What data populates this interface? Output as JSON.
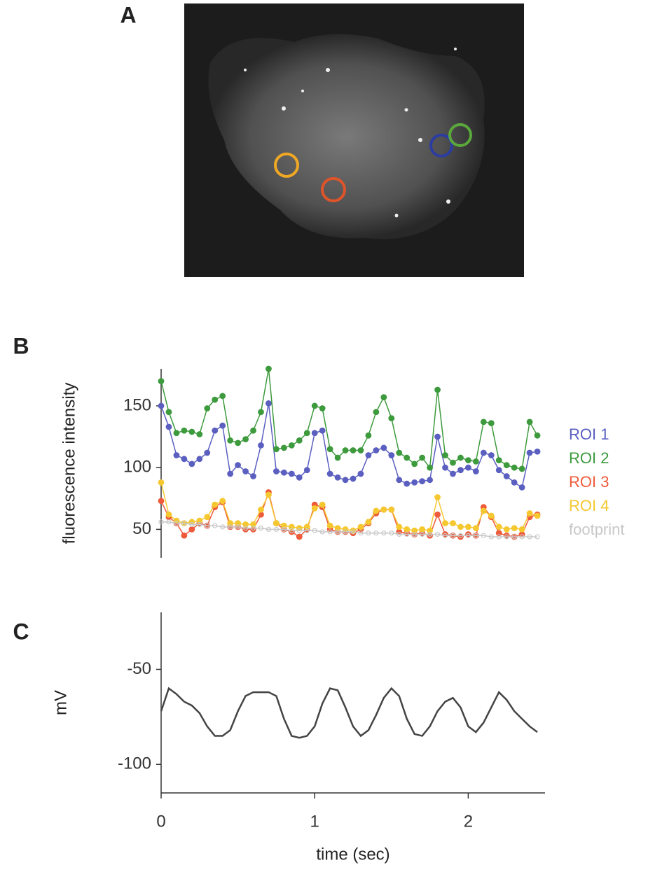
{
  "panel_labels": [
    "A",
    "B",
    "C"
  ],
  "chart_data": [
    {
      "type": "line",
      "ylabel": "fluorescence intensity",
      "legend": "right",
      "x": [
        0,
        0.05,
        0.1,
        0.15,
        0.2,
        0.25,
        0.3,
        0.35,
        0.4,
        0.45,
        0.5,
        0.55,
        0.6,
        0.65,
        0.7,
        0.75,
        0.8,
        0.85,
        0.9,
        0.95,
        1.0,
        1.05,
        1.1,
        1.15,
        1.2,
        1.25,
        1.3,
        1.35,
        1.4,
        1.45,
        1.5,
        1.55,
        1.6,
        1.65,
        1.7,
        1.75,
        1.8,
        1.85,
        1.9,
        1.95,
        2.0,
        2.05,
        2.1,
        2.15,
        2.2,
        2.25,
        2.3,
        2.35,
        2.4,
        2.45
      ],
      "xlim": [
        0,
        2.5
      ],
      "ylim": [
        27,
        180
      ],
      "yticks": [
        50,
        100,
        150
      ],
      "series": [
        {
          "name": "ROI 1",
          "color": "#5a5fc0",
          "values": [
            150,
            133,
            110,
            107,
            103,
            107,
            112,
            130,
            134,
            95,
            102,
            97,
            93,
            118,
            152,
            97,
            96,
            95,
            92,
            98,
            128,
            130,
            95,
            92,
            90,
            91,
            95,
            110,
            114,
            116,
            110,
            90,
            87,
            88,
            89,
            90,
            125,
            100,
            95,
            98,
            100,
            97,
            112,
            110,
            98,
            93,
            88,
            84,
            112,
            113
          ]
        },
        {
          "name": "ROI 2",
          "color": "#3d9a3d",
          "values": [
            170,
            145,
            128,
            130,
            129,
            127,
            148,
            155,
            158,
            122,
            120,
            123,
            130,
            145,
            180,
            115,
            116,
            118,
            122,
            128,
            150,
            148,
            115,
            108,
            114,
            114,
            114,
            126,
            145,
            157,
            140,
            112,
            108,
            103,
            108,
            100,
            163,
            110,
            104,
            108,
            106,
            105,
            137,
            136,
            106,
            102,
            100,
            99,
            137,
            126
          ]
        },
        {
          "name": "ROI 3",
          "color": "#ee5a3a",
          "values": [
            73,
            60,
            55,
            45,
            50,
            55,
            53,
            68,
            72,
            52,
            52,
            50,
            50,
            62,
            80,
            55,
            50,
            48,
            44,
            50,
            70,
            68,
            50,
            48,
            48,
            47,
            50,
            55,
            63,
            66,
            66,
            48,
            47,
            46,
            47,
            45,
            62,
            46,
            45,
            44,
            46,
            45,
            68,
            60,
            47,
            45,
            44,
            46,
            60,
            62
          ]
        },
        {
          "name": "ROI 4",
          "color": "#f5c830",
          "values": [
            88,
            62,
            57,
            55,
            56,
            57,
            60,
            70,
            73,
            55,
            55,
            54,
            54,
            66,
            78,
            55,
            53,
            52,
            51,
            52,
            67,
            70,
            53,
            51,
            50,
            49,
            52,
            56,
            65,
            66,
            66,
            52,
            50,
            49,
            50,
            49,
            76,
            55,
            55,
            52,
            52,
            51,
            65,
            61,
            52,
            50,
            51,
            50,
            63,
            61
          ]
        },
        {
          "name": "footprint",
          "color": "#c8c8c8",
          "values": [
            56,
            56,
            55,
            55,
            54,
            54,
            53,
            53,
            52,
            52,
            52,
            51,
            51,
            51,
            50,
            50,
            50,
            49,
            49,
            49,
            49,
            48,
            48,
            48,
            48,
            48,
            47,
            47,
            47,
            47,
            47,
            46,
            46,
            46,
            46,
            46,
            46,
            45,
            45,
            45,
            45,
            45,
            45,
            44,
            44,
            44,
            44,
            44,
            44,
            44
          ]
        }
      ]
    },
    {
      "type": "trace",
      "ylabel": "mV",
      "xlabel": "time (sec)",
      "x": [
        0,
        0.05,
        0.1,
        0.15,
        0.2,
        0.25,
        0.3,
        0.35,
        0.4,
        0.45,
        0.5,
        0.55,
        0.6,
        0.65,
        0.7,
        0.75,
        0.8,
        0.85,
        0.9,
        0.95,
        1.0,
        1.05,
        1.1,
        1.15,
        1.2,
        1.25,
        1.3,
        1.35,
        1.4,
        1.45,
        1.5,
        1.55,
        1.6,
        1.65,
        1.7,
        1.75,
        1.8,
        1.85,
        1.9,
        1.95,
        2.0,
        2.05,
        2.1,
        2.15,
        2.2,
        2.25,
        2.3,
        2.35,
        2.4,
        2.45
      ],
      "xlim": [
        0,
        2.5
      ],
      "xticks": [
        0,
        1,
        2
      ],
      "ylim": [
        -115,
        -20
      ],
      "yticks": [
        -50,
        -100
      ],
      "series": [
        {
          "color": "#444444",
          "values": [
            -72,
            -60,
            -63,
            -67,
            -69,
            -73,
            -80,
            -85,
            -85,
            -82,
            -72,
            -64,
            -62,
            -62,
            -62,
            -64,
            -76,
            -85,
            -86,
            -85,
            -80,
            -68,
            -60,
            -61,
            -70,
            -80,
            -85,
            -82,
            -74,
            -65,
            -60,
            -64,
            -76,
            -84,
            -85,
            -80,
            -72,
            -67,
            -65,
            -70,
            -80,
            -83,
            -78,
            -70,
            -62,
            -66,
            -72,
            -76,
            -80,
            -83
          ]
        }
      ]
    }
  ]
}
